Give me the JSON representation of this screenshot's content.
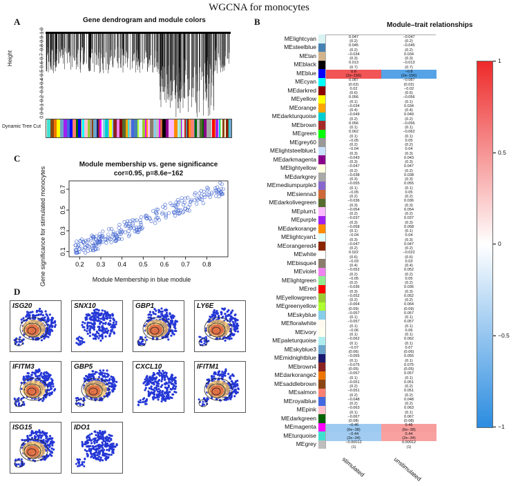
{
  "figure_title": "WGCNA for monocytes",
  "panels": {
    "a": {
      "letter": "A",
      "title": "Gene dendrogram and module colors",
      "ylabel": "Height",
      "row_label": "Dynamic Tree Cut",
      "yticks": [
        "1.0",
        "0.9",
        "0.8",
        "0.7",
        "0.6",
        "0.5",
        "0.4",
        "0.3",
        "0.2",
        "0.1",
        "0.0"
      ]
    },
    "b": {
      "letter": "B",
      "title": "Module–trait relationships"
    },
    "c": {
      "letter": "C",
      "title": "Module membership vs. gene significance",
      "subtitle": "cor=0.95, p=8.6e−162"
    },
    "d": {
      "letter": "D"
    }
  },
  "chart_data": [
    {
      "type": "heatmap",
      "title": "Module–trait relationships",
      "columns": [
        "stimulated",
        "unstimulated"
      ],
      "colorbar": {
        "range": [
          -1,
          1
        ],
        "tick_labels": [
          "1",
          "0.5",
          "0",
          "−0.5",
          "−1"
        ]
      },
      "rows": [
        {
          "module": "MElightcyan",
          "color": "#d9f2f2",
          "s": [
            "0.047",
            "(0.2)"
          ],
          "u": [
            "−0.047",
            "(0.2)"
          ]
        },
        {
          "module": "MEsteelblue",
          "color": "#4682b4",
          "s": [
            "0.045",
            "(0.2)"
          ],
          "u": [
            "−0.045",
            "(0.2)"
          ]
        },
        {
          "module": "MEtan",
          "color": "#d2b48c",
          "s": [
            "−0.034",
            "(0.3)"
          ],
          "u": [
            "0.034",
            "(0.3)"
          ]
        },
        {
          "module": "MEblack",
          "color": "#000000",
          "s": [
            "0.013",
            "(0.7)"
          ],
          "u": [
            "−0.013",
            "(0.7)"
          ]
        },
        {
          "module": "MEblue",
          "color": "#0000ff",
          "s": [
            "0.8",
            "(2e−156)"
          ],
          "u": [
            "−0.8",
            "(2e−156)"
          ]
        },
        {
          "module": "MEcyan",
          "color": "#00ffff",
          "s": [
            "0.087",
            "(0.02)"
          ],
          "u": [
            "−0.087",
            "(0.02)"
          ]
        },
        {
          "module": "MEdarkred",
          "color": "#8b0000",
          "s": [
            "0.02",
            "(0.6)"
          ],
          "u": [
            "−0.02",
            "(0.6)"
          ]
        },
        {
          "module": "MEyellow",
          "color": "#ffff00",
          "s": [
            "0.056",
            "(0.1)"
          ],
          "u": [
            "−0.056",
            "(0.1)"
          ]
        },
        {
          "module": "MEorange",
          "color": "#ffa500",
          "s": [
            "−0.034",
            "(0.4)"
          ],
          "u": [
            "0.034",
            "(0.4)"
          ]
        },
        {
          "module": "MEdarkturquoise",
          "color": "#00ced1",
          "s": [
            "−0.049",
            "(0.2)"
          ],
          "u": [
            "0.049",
            "(0.2)"
          ]
        },
        {
          "module": "MEbrown",
          "color": "#a52a2a",
          "s": [
            "0.056",
            "(0.1)"
          ],
          "u": [
            "−0.056",
            "(0.1)"
          ]
        },
        {
          "module": "MEgreen",
          "color": "#00ff00",
          "s": [
            "0.062",
            "(0.1)"
          ],
          "u": [
            "−0.062",
            "(0.1)"
          ]
        },
        {
          "module": "MEgrey60",
          "color": "#999999",
          "s": [
            "−0.05",
            "(0.2)"
          ],
          "u": [
            "0.05",
            "(0.2)"
          ]
        },
        {
          "module": "MElightsteelblue1",
          "color": "#cae1ff",
          "s": [
            "−0.04",
            "(0.3)"
          ],
          "u": [
            "0.04",
            "(0.3)"
          ]
        },
        {
          "module": "MEdarkmagenta",
          "color": "#8b008b",
          "s": [
            "−0.043",
            "(0.3)"
          ],
          "u": [
            "0.043",
            "(0.3)"
          ]
        },
        {
          "module": "MElightyellow",
          "color": "#ffffe0",
          "s": [
            "−0.047",
            "(0.2)"
          ],
          "u": [
            "0.047",
            "(0.2)"
          ]
        },
        {
          "module": "MEdarkgrey",
          "color": "#a9a9a9",
          "s": [
            "−0.038",
            "(0.3)"
          ],
          "u": [
            "0.038",
            "(0.3)"
          ]
        },
        {
          "module": "MEmediumpurple3",
          "color": "#8968cd",
          "s": [
            "−0.055",
            "(0.1)"
          ],
          "u": [
            "0.055",
            "(0.1)"
          ]
        },
        {
          "module": "MEsienna3",
          "color": "#cd6839",
          "s": [
            "−0.05",
            "(0.2)"
          ],
          "u": [
            "0.05",
            "(0.2)"
          ]
        },
        {
          "module": "MEdarkolivegreen",
          "color": "#556b2f",
          "s": [
            "−0.036",
            "(0.3)"
          ],
          "u": [
            "0.036",
            "(0.3)"
          ]
        },
        {
          "module": "MEplum1",
          "color": "#ffbbff",
          "s": [
            "−0.054",
            "(0.2)"
          ],
          "u": [
            "0.054",
            "(0.2)"
          ]
        },
        {
          "module": "MEpurple",
          "color": "#a020f0",
          "s": [
            "−0.037",
            "(0.3)"
          ],
          "u": [
            "0.037",
            "(0.3)"
          ]
        },
        {
          "module": "MEdarkorange",
          "color": "#ff8c00",
          "s": [
            "−0.058",
            "(0.1)"
          ],
          "u": [
            "0.058",
            "(0.1)"
          ]
        },
        {
          "module": "MElightcyan1",
          "color": "#e0ffff",
          "s": [
            "−0.04",
            "(0.3)"
          ],
          "u": [
            "0.04",
            "(0.3)"
          ]
        },
        {
          "module": "MEorangered4",
          "color": "#8b2500",
          "s": [
            "−0.047",
            "(0.2)"
          ],
          "u": [
            "0.047",
            "(0.2)"
          ]
        },
        {
          "module": "MEwhite",
          "color": "#ffffff",
          "s": [
            "0.022",
            "(0.6)"
          ],
          "u": [
            "−0.022",
            "(0.6)"
          ]
        },
        {
          "module": "MEbisque4",
          "color": "#8b7d6b",
          "s": [
            "−0.03",
            "(0.4)"
          ],
          "u": [
            "0.03",
            "(0.4)"
          ]
        },
        {
          "module": "MEviolet",
          "color": "#ee82ee",
          "s": [
            "−0.052",
            "(0.2)"
          ],
          "u": [
            "0.052",
            "(0.2)"
          ]
        },
        {
          "module": "MElightgreen",
          "color": "#90ee90",
          "s": [
            "−0.05",
            "(0.2)"
          ],
          "u": [
            "0.05",
            "(0.2)"
          ]
        },
        {
          "module": "MEred",
          "color": "#ff0000",
          "s": [
            "−0.036",
            "(0.3)"
          ],
          "u": [
            "0.036",
            "(0.3)"
          ]
        },
        {
          "module": "MEyellowgreen",
          "color": "#9acd32",
          "s": [
            "−0.052",
            "(0.2)"
          ],
          "u": [
            "0.052",
            "(0.2)"
          ]
        },
        {
          "module": "MEgreenyellow",
          "color": "#adff2f",
          "s": [
            "−0.064",
            "(0.09)"
          ],
          "u": [
            "0.064",
            "(0.09)"
          ]
        },
        {
          "module": "MEskyblue",
          "color": "#87ceeb",
          "s": [
            "−0.057",
            "(0.1)"
          ],
          "u": [
            "0.057",
            "(0.1)"
          ]
        },
        {
          "module": "MEfloralwhite",
          "color": "#fffaf0",
          "s": [
            "−0.057",
            "(0.1)"
          ],
          "u": [
            "0.057",
            "(0.1)"
          ]
        },
        {
          "module": "MEivory",
          "color": "#fffff0",
          "s": [
            "−0.06",
            "(0.1)"
          ],
          "u": [
            "0.06",
            "(0.1)"
          ]
        },
        {
          "module": "MEpaleturquoise",
          "color": "#afeeee",
          "s": [
            "−0.062",
            "(0.1)"
          ],
          "u": [
            "0.062",
            "(0.1)"
          ]
        },
        {
          "module": "MEskyblue3",
          "color": "#6ca6cd",
          "s": [
            "−0.07",
            "(0.06)"
          ],
          "u": [
            "0.07",
            "(0.06)"
          ]
        },
        {
          "module": "MEmidnightblue",
          "color": "#191970",
          "s": [
            "−0.055",
            "(0.1)"
          ],
          "u": [
            "0.055",
            "(0.1)"
          ]
        },
        {
          "module": "MEbrown4",
          "color": "#8b2323",
          "s": [
            "−0.075",
            "(0.05)"
          ],
          "u": [
            "0.075",
            "(0.05)"
          ]
        },
        {
          "module": "MEdarkorange2",
          "color": "#ee7600",
          "s": [
            "−0.057",
            "(0.1)"
          ],
          "u": [
            "0.057",
            "(0.1)"
          ]
        },
        {
          "module": "MEsaddlebrown",
          "color": "#8b4513",
          "s": [
            "−0.051",
            "(0.2)"
          ],
          "u": [
            "0.051",
            "(0.2)"
          ]
        },
        {
          "module": "MEsalmon",
          "color": "#fa8072",
          "s": [
            "−0.051",
            "(0.2)"
          ],
          "u": [
            "0.051",
            "(0.2)"
          ]
        },
        {
          "module": "MEroyalblue",
          "color": "#4169e1",
          "s": [
            "−0.048",
            "(0.2)"
          ],
          "u": [
            "0.048",
            "(0.2)"
          ]
        },
        {
          "module": "MEpink",
          "color": "#ffc0cb",
          "s": [
            "−0.063",
            "(0.1)"
          ],
          "u": [
            "0.063",
            "(0.1)"
          ]
        },
        {
          "module": "MEdarkgreen",
          "color": "#006400",
          "s": [
            "−0.067",
            "(0.08)"
          ],
          "u": [
            "0.067",
            "(0.08)"
          ]
        },
        {
          "module": "MEmagenta",
          "color": "#ff00ff",
          "s": [
            "−0.46",
            "(6e−38)"
          ],
          "u": [
            "0.46",
            "(6e−38)"
          ]
        },
        {
          "module": "MEturquoise",
          "color": "#40e0d0",
          "s": [
            "−0.44",
            "(2e−34)"
          ],
          "u": [
            "0.44",
            "(2e−34)"
          ]
        },
        {
          "module": "MEgrey",
          "color": "#bebebe",
          "s": [
            "−0.00012",
            "(1)"
          ],
          "u": [
            "0.00012",
            "(1)"
          ]
        }
      ]
    },
    {
      "type": "scatter",
      "title": "Module membership vs. gene significance",
      "subtitle": "cor=0.95, p=8.6e−162",
      "xlabel": "Module Membership in blue module",
      "ylabel": "Gene significance for stimulated monocytes",
      "xlim": [
        0.15,
        0.9
      ],
      "ylim": [
        0.05,
        0.78
      ],
      "xticks": [
        "0.2",
        "0.3",
        "0.4",
        "0.5",
        "0.6",
        "0.7",
        "0.8"
      ],
      "yticks": [
        "0.1",
        "0.3",
        "0.5",
        "0.7"
      ],
      "trend": {
        "slope": 0.85,
        "intercept": -0.04,
        "n": 260
      },
      "color": "#3a5fcd"
    }
  ],
  "umap_panels": [
    {
      "gene": "ISG20",
      "density": true
    },
    {
      "gene": "SNX10",
      "density": false
    },
    {
      "gene": "GBP1",
      "density": true
    },
    {
      "gene": "LY6E",
      "density": true
    },
    {
      "gene": "IFITM3",
      "density": true
    },
    {
      "gene": "GBP5",
      "density": true
    },
    {
      "gene": "CXCL10",
      "density": false
    },
    {
      "gene": "IFITM1",
      "density": true
    },
    {
      "gene": "ISG15",
      "density": true
    },
    {
      "gene": "IDO1",
      "density": false
    }
  ]
}
